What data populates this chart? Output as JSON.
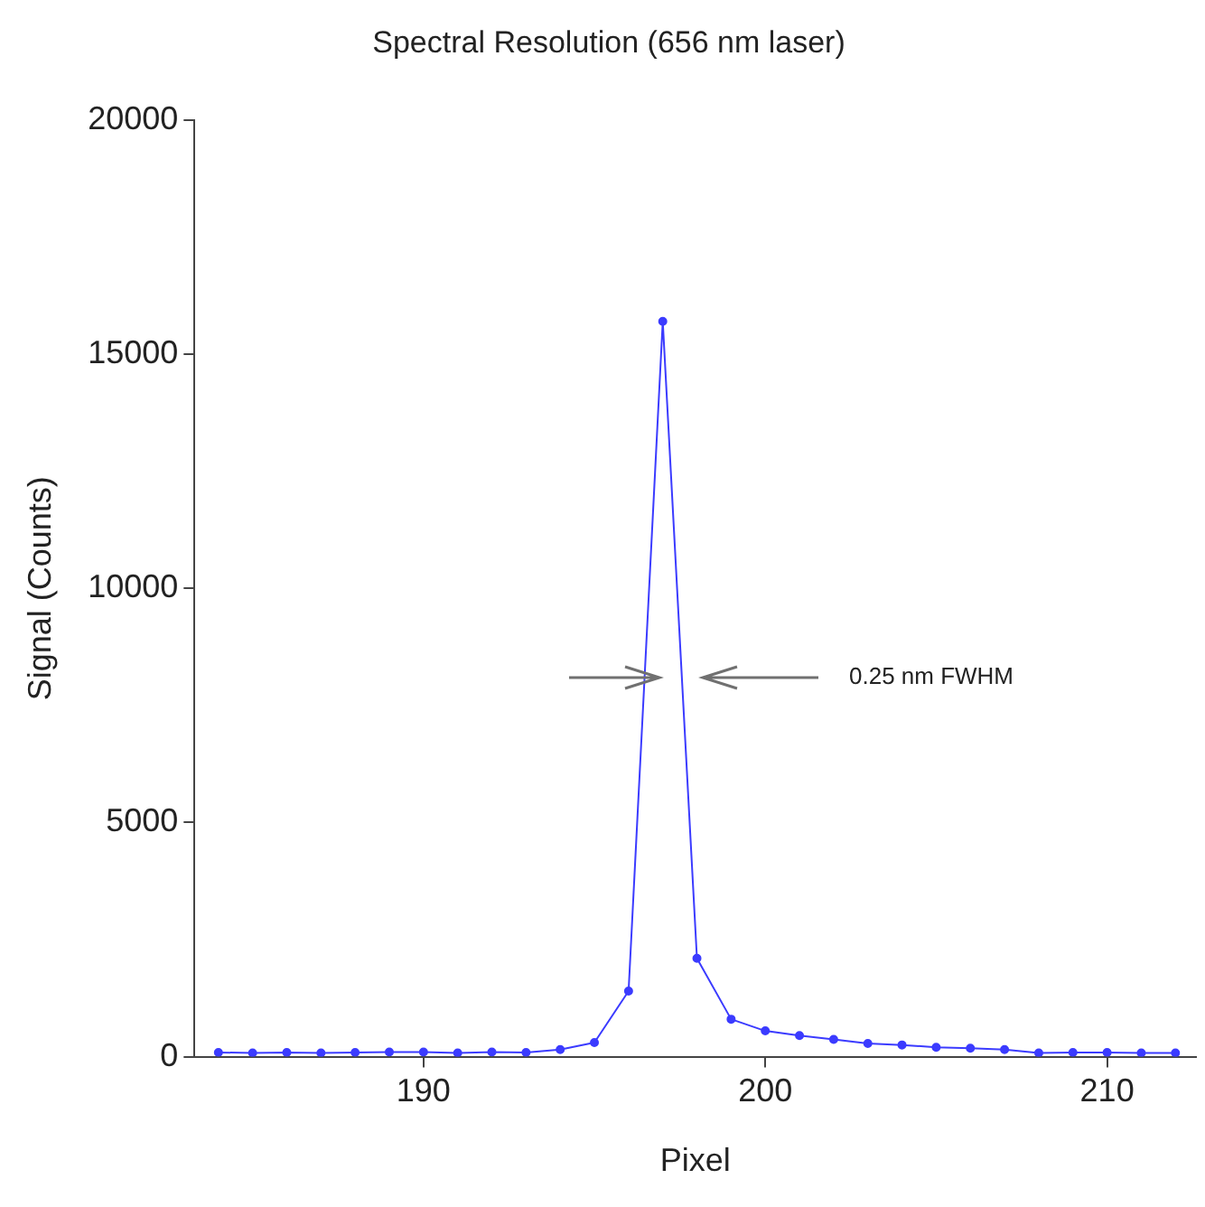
{
  "chart_data": {
    "type": "line",
    "title": "Spectral Resolution (656 nm laser)",
    "xlabel": "Pixel",
    "ylabel": "Signal (Counts)",
    "x": [
      184,
      185,
      186,
      187,
      188,
      189,
      190,
      191,
      192,
      193,
      194,
      195,
      196,
      197,
      198,
      199,
      200,
      201,
      202,
      203,
      204,
      205,
      206,
      207,
      208,
      209,
      210,
      211,
      212
    ],
    "series": [
      {
        "color": "#3b3bff",
        "values": [
          90,
          80,
          90,
          80,
          90,
          100,
          100,
          80,
          100,
          90,
          150,
          300,
          1400,
          15700,
          2100,
          800,
          550,
          450,
          370,
          280,
          250,
          200,
          180,
          150,
          80,
          90,
          90,
          80,
          80
        ]
      }
    ],
    "xlim": [
      183.3,
      212.6
    ],
    "xticks": [
      190,
      200,
      210
    ],
    "ylim": [
      0,
      20000
    ],
    "yticks": [
      0,
      5000,
      10000,
      15000,
      20000
    ],
    "grid": false,
    "legend": false,
    "marker": "circle",
    "line_style": "solid",
    "annotations": [
      "0.25 nm FWHM"
    ]
  }
}
